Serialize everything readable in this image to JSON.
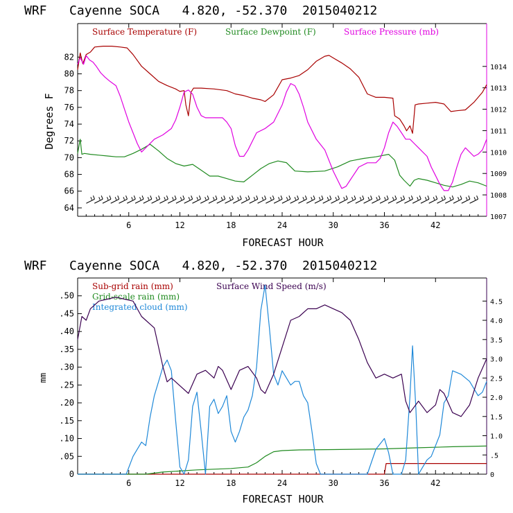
{
  "colors": {
    "temperature": "#a80000",
    "dewpoint": "#1f8a1f",
    "pressure": "#e000e0",
    "subgrid_rain": "#a80000",
    "grid_rain": "#1f8a1f",
    "cloud": "#1e88d8",
    "wind": "#3a0050",
    "barb": "#000000"
  },
  "chart_data": [
    {
      "type": "line",
      "title": "WRF   Cayenne SOCA   4.820, -52.370  2015040212",
      "xlabel": "FORECAST HOUR",
      "ylabel": "Degrees F",
      "xlim": [
        0,
        48
      ],
      "ylim": [
        63,
        86
      ],
      "ylim_right": [
        1007,
        1016
      ],
      "x_ticks": [
        6,
        12,
        18,
        24,
        30,
        36,
        42
      ],
      "x_tick_labels": [
        "6",
        "12",
        "18",
        "24",
        "30",
        "36",
        "42"
      ],
      "y_ticks": [
        64,
        66,
        68,
        70,
        72,
        74,
        76,
        78,
        80,
        82
      ],
      "y_tick_labels": [
        "64",
        "66",
        "68",
        "70",
        "72",
        "74",
        "76",
        "78",
        "80",
        "82"
      ],
      "y_right_ticks": [
        1007,
        1008,
        1009,
        1010,
        1011,
        1012,
        1013,
        1014
      ],
      "y_right_tick_labels": [
        "1007",
        "1008",
        "1009",
        "1010",
        "1011",
        "1012",
        "1013",
        "1014"
      ],
      "legend": [
        "Surface Temperature (F)",
        "Surface Dewpoint (F)",
        "Surface Pressure (mb)"
      ],
      "wind_barbs": {
        "y": 64.8,
        "count": 48
      },
      "series": [
        {
          "name": "Surface Temperature (F)",
          "axis": "left",
          "color_key": "temperature",
          "x": [
            0,
            0.3,
            0.6,
            1,
            1.5,
            2,
            3,
            4,
            5,
            5.8,
            6.5,
            7.5,
            8.5,
            9.5,
            10.5,
            11.5,
            12,
            12.5,
            12.7,
            13,
            13.3,
            13.6,
            14.5,
            16,
            17.5,
            18.5,
            19.5,
            20.5,
            21.5,
            22,
            23,
            24,
            25,
            26,
            27,
            28,
            29,
            29.5,
            30,
            31,
            32,
            33,
            34,
            35,
            36,
            37,
            37.2,
            37.8,
            38.3,
            38.6,
            39,
            39.3,
            39.6,
            40,
            41,
            42,
            43,
            43.8,
            44.5,
            45.5,
            46.5,
            47.5,
            48
          ],
          "values": [
            80.5,
            82.5,
            81.2,
            82.3,
            82.6,
            83.2,
            83.3,
            83.3,
            83.2,
            83.1,
            82.3,
            80.9,
            80.0,
            79.1,
            78.6,
            78.2,
            77.9,
            78.0,
            76.3,
            75.0,
            77.8,
            78.3,
            78.3,
            78.2,
            78.0,
            77.6,
            77.4,
            77.1,
            76.9,
            76.7,
            77.5,
            79.3,
            79.5,
            79.8,
            80.5,
            81.5,
            82.1,
            82.2,
            81.9,
            81.3,
            80.6,
            79.6,
            77.6,
            77.2,
            77.2,
            77.1,
            75.0,
            74.6,
            73.8,
            73.2,
            73.8,
            72.9,
            76.3,
            76.4,
            76.5,
            76.6,
            76.4,
            75.5,
            75.6,
            75.7,
            76.6,
            77.8,
            78.7
          ]
        },
        {
          "name": "Surface Dewpoint (F)",
          "axis": "left",
          "color_key": "dewpoint",
          "x": [
            0,
            0.3,
            0.5,
            0.8,
            1.5,
            2.5,
            3.5,
            4.5,
            5.5,
            6.5,
            7.5,
            8.5,
            9.5,
            10.5,
            11.5,
            12.5,
            13.5,
            14.5,
            15.5,
            16.5,
            17.5,
            18.5,
            19.5,
            20.5,
            21.5,
            22.5,
            23.5,
            24.5,
            25.5,
            27,
            29,
            30.5,
            32,
            33.5,
            35,
            36.5,
            37.2,
            37.8,
            38.3,
            39,
            39.5,
            40,
            41,
            42,
            43,
            44,
            45,
            46,
            47,
            48
          ],
          "values": [
            70.5,
            72.2,
            70.4,
            70.5,
            70.4,
            70.3,
            70.2,
            70.1,
            70.1,
            70.5,
            71.0,
            71.6,
            70.8,
            69.9,
            69.3,
            69.0,
            69.2,
            68.5,
            67.8,
            67.8,
            67.5,
            67.2,
            67.1,
            67.9,
            68.7,
            69.3,
            69.6,
            69.4,
            68.4,
            68.3,
            68.4,
            68.9,
            69.6,
            69.9,
            70.1,
            70.4,
            69.7,
            67.9,
            67.3,
            66.6,
            67.3,
            67.5,
            67.3,
            67.0,
            66.7,
            66.5,
            66.8,
            67.2,
            67.0,
            66.6
          ]
        },
        {
          "name": "Surface Pressure (mb)",
          "axis": "right",
          "color_key": "pressure",
          "x": [
            0,
            0.3,
            0.7,
            1,
            1.4,
            1.8,
            2.2,
            2.7,
            3.2,
            3.8,
            4.5,
            5,
            5.5,
            6,
            6.5,
            7,
            7.5,
            8,
            9,
            10,
            11,
            11.5,
            12,
            12.5,
            13,
            13.5,
            14,
            14.5,
            15,
            16,
            17,
            17.5,
            18,
            18.5,
            19,
            19.5,
            20,
            21,
            22,
            23,
            24,
            24.5,
            25,
            25.5,
            26,
            26.5,
            27,
            28,
            29,
            30,
            30.5,
            31,
            31.5,
            32,
            33,
            34,
            35,
            35.5,
            36,
            36.5,
            37,
            37.5,
            38,
            38.5,
            39,
            39.5,
            40,
            41,
            41.5,
            42,
            42.5,
            43,
            43.5,
            44,
            44.5,
            45,
            45.5,
            46,
            46.5,
            47,
            47.5,
            48
          ],
          "values": [
            1014.1,
            1014.4,
            1014.1,
            1014.5,
            1014.3,
            1014.2,
            1014.0,
            1013.7,
            1013.5,
            1013.3,
            1013.1,
            1012.6,
            1012.0,
            1011.4,
            1010.9,
            1010.4,
            1010.0,
            1010.2,
            1010.6,
            1010.8,
            1011.1,
            1011.5,
            1012.1,
            1012.8,
            1012.9,
            1012.7,
            1012.1,
            1011.7,
            1011.6,
            1011.6,
            1011.6,
            1011.4,
            1011.1,
            1010.3,
            1009.8,
            1009.8,
            1010.1,
            1010.9,
            1011.1,
            1011.4,
            1012.2,
            1012.8,
            1013.2,
            1013.1,
            1012.7,
            1012.1,
            1011.4,
            1010.6,
            1010.1,
            1009.1,
            1008.7,
            1008.3,
            1008.4,
            1008.7,
            1009.3,
            1009.5,
            1009.5,
            1009.7,
            1010.2,
            1010.9,
            1011.4,
            1011.2,
            1010.9,
            1010.6,
            1010.6,
            1010.4,
            1010.2,
            1009.8,
            1009.3,
            1008.9,
            1008.5,
            1008.2,
            1008.2,
            1008.6,
            1009.3,
            1009.9,
            1010.2,
            1010.0,
            1009.8,
            1009.9,
            1010.1,
            1010.6
          ]
        }
      ]
    },
    {
      "type": "line",
      "title": "WRF   Cayenne SOCA   4.820, -52.370  2015040212",
      "xlabel": "FORECAST HOUR",
      "ylabel": "mm",
      "xlim": [
        0,
        48
      ],
      "ylim": [
        0,
        0.55
      ],
      "ylim_right": [
        0,
        5.1
      ],
      "x_ticks": [
        6,
        12,
        18,
        24,
        30,
        36,
        42
      ],
      "x_tick_labels": [
        "6",
        "12",
        "18",
        "24",
        "30",
        "36",
        "42"
      ],
      "y_ticks": [
        0,
        0.05,
        0.1,
        0.15,
        0.2,
        0.25,
        0.3,
        0.35,
        0.4,
        0.45,
        0.5
      ],
      "y_tick_labels": [
        "0",
        ".05",
        ".10",
        ".15",
        ".20",
        ".25",
        ".30",
        ".35",
        ".40",
        ".45",
        ".50"
      ],
      "y_right_ticks": [
        0,
        0.5,
        1.0,
        1.5,
        2.0,
        2.5,
        3.0,
        3.5,
        4.0,
        4.5
      ],
      "y_right_tick_labels": [
        "0",
        ".5",
        "1.0",
        "1.5",
        "2.0",
        "2.5",
        "3.0",
        "3.5",
        "4.0",
        "4.5"
      ],
      "legend": [
        "Sub-grid rain (mm)",
        "Grid-scale rain (mm)",
        "Integrated cloud (mm)",
        "Surface Wind Speed (m/s)"
      ],
      "series": [
        {
          "name": "Sub-grid rain (mm)",
          "axis": "left",
          "color_key": "subgrid_rain",
          "x": [
            0,
            36,
            36.2,
            36.8,
            48
          ],
          "values": [
            0,
            0,
            0.03,
            0.03,
            0.03
          ]
        },
        {
          "name": "Grid-scale rain (mm)",
          "axis": "left",
          "color_key": "grid_rain",
          "x": [
            0,
            8,
            10,
            12,
            14,
            18,
            20,
            21,
            22,
            23,
            24,
            26,
            30,
            36,
            40,
            44,
            48
          ],
          "values": [
            0,
            0,
            0.006,
            0.009,
            0.012,
            0.016,
            0.02,
            0.032,
            0.05,
            0.063,
            0.066,
            0.068,
            0.069,
            0.071,
            0.074,
            0.077,
            0.079
          ]
        },
        {
          "name": "Integrated cloud (mm)",
          "axis": "left",
          "color_key": "cloud",
          "x": [
            0,
            5.7,
            6.5,
            7.5,
            8,
            8.5,
            9,
            9.5,
            10,
            10.5,
            11,
            11.5,
            12,
            12.5,
            13,
            13.5,
            14,
            14.5,
            15,
            15.5,
            16,
            16.5,
            17,
            17.5,
            18,
            18.5,
            19,
            19.5,
            20,
            20.5,
            21,
            21.5,
            22,
            22.5,
            23,
            23.5,
            24,
            24.5,
            25,
            25.5,
            26,
            26.5,
            27,
            27.5,
            28,
            28.5,
            34,
            35,
            36,
            36.5,
            37,
            38,
            38.5,
            39,
            39.3,
            39.7,
            40,
            40.5,
            41,
            41.5,
            42,
            42.5,
            43,
            43.5,
            44,
            45,
            46,
            47,
            47.5,
            48
          ],
          "values": [
            0,
            0,
            0.05,
            0.09,
            0.08,
            0.16,
            0.22,
            0.26,
            0.3,
            0.32,
            0.29,
            0.15,
            0.02,
            0.0,
            0.04,
            0.19,
            0.23,
            0.12,
            0.0,
            0.19,
            0.21,
            0.17,
            0.19,
            0.22,
            0.12,
            0.09,
            0.12,
            0.16,
            0.18,
            0.22,
            0.3,
            0.46,
            0.53,
            0.41,
            0.28,
            0.25,
            0.29,
            0.27,
            0.25,
            0.26,
            0.26,
            0.22,
            0.2,
            0.12,
            0.03,
            0.0,
            0.0,
            0.07,
            0.1,
            0.06,
            0.0,
            0.0,
            0.04,
            0.22,
            0.36,
            0.18,
            0.0,
            0.02,
            0.04,
            0.05,
            0.08,
            0.11,
            0.2,
            0.22,
            0.29,
            0.28,
            0.26,
            0.22,
            0.23,
            0.26
          ]
        },
        {
          "name": "Surface Wind Speed (m/s)",
          "axis": "right",
          "color_key": "wind",
          "x": [
            0,
            0.5,
            1,
            1.5,
            2.5,
            3.5,
            4.5,
            5.5,
            6.5,
            7.5,
            8,
            8.5,
            9,
            9.5,
            10,
            10.5,
            11,
            12,
            13,
            14,
            15,
            16,
            16.5,
            17,
            18,
            19,
            20,
            21,
            21.5,
            22,
            23,
            24,
            25,
            26,
            27,
            28,
            29,
            30,
            31,
            32,
            33,
            34,
            35,
            36,
            37,
            38,
            38.5,
            39,
            40,
            41,
            42,
            42.5,
            43,
            44,
            45,
            46,
            47,
            48
          ],
          "values": [
            3.5,
            4.1,
            4.0,
            4.3,
            4.5,
            4.55,
            4.6,
            4.55,
            4.5,
            4.1,
            4.0,
            3.9,
            3.8,
            3.3,
            2.8,
            2.4,
            2.5,
            2.3,
            2.1,
            2.6,
            2.7,
            2.5,
            2.8,
            2.7,
            2.2,
            2.7,
            2.8,
            2.5,
            2.2,
            2.1,
            2.6,
            3.3,
            4.0,
            4.1,
            4.3,
            4.3,
            4.4,
            4.3,
            4.2,
            4.0,
            3.5,
            2.9,
            2.5,
            2.6,
            2.5,
            2.6,
            1.9,
            1.6,
            1.9,
            1.6,
            1.8,
            2.2,
            2.1,
            1.6,
            1.5,
            1.8,
            2.5,
            3.0
          ]
        }
      ]
    }
  ]
}
